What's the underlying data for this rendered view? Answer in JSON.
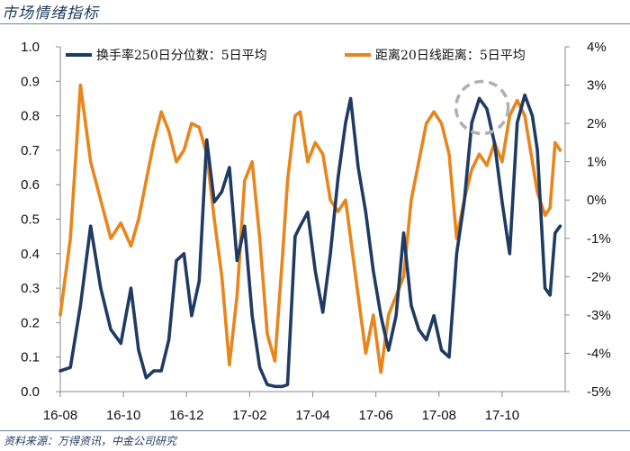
{
  "header": {
    "title": "市场情绪指标"
  },
  "footer": {
    "source": "资料来源：万得资讯，中金公司研究"
  },
  "chart_data": {
    "type": "line",
    "x_ticks": [
      "16-08",
      "16-10",
      "16-12",
      "17-02",
      "17-04",
      "17-06",
      "17-08",
      "17-10"
    ],
    "left_axis": {
      "ylim": [
        0,
        1.0
      ],
      "ticks": [
        "0.0",
        "0.1",
        "0.2",
        "0.3",
        "0.4",
        "0.5",
        "0.6",
        "0.7",
        "0.8",
        "0.9",
        "1.0"
      ]
    },
    "right_axis": {
      "ylim": [
        -5,
        4
      ],
      "ticks": [
        "-5%",
        "-4%",
        "-3%",
        "-2%",
        "-1%",
        "0%",
        "1%",
        "2%",
        "3%",
        "4%"
      ]
    },
    "grid": false,
    "legend_position": "top",
    "annotation": "dashed-circle-around-2017-08-peak",
    "series": [
      {
        "name": "换手率250日分位数：5日平均",
        "axis": "left",
        "color": "#1f3b63",
        "points": [
          [
            0.0,
            0.06
          ],
          [
            0.8,
            0.07
          ],
          [
            1.6,
            0.25
          ],
          [
            2.4,
            0.48
          ],
          [
            3.2,
            0.3
          ],
          [
            4.0,
            0.18
          ],
          [
            4.8,
            0.14
          ],
          [
            5.6,
            0.3
          ],
          [
            6.2,
            0.12
          ],
          [
            6.8,
            0.04
          ],
          [
            7.4,
            0.06
          ],
          [
            8.0,
            0.06
          ],
          [
            8.6,
            0.15
          ],
          [
            9.2,
            0.38
          ],
          [
            9.8,
            0.4
          ],
          [
            10.4,
            0.22
          ],
          [
            11.0,
            0.32
          ],
          [
            11.6,
            0.73
          ],
          [
            12.2,
            0.55
          ],
          [
            12.8,
            0.58
          ],
          [
            13.4,
            0.65
          ],
          [
            14.0,
            0.38
          ],
          [
            14.6,
            0.48
          ],
          [
            15.2,
            0.22
          ],
          [
            15.8,
            0.07
          ],
          [
            16.4,
            0.02
          ],
          [
            17.0,
            0.015
          ],
          [
            17.6,
            0.015
          ],
          [
            18.0,
            0.02
          ],
          [
            18.6,
            0.45
          ],
          [
            19.0,
            0.48
          ],
          [
            19.6,
            0.52
          ],
          [
            20.2,
            0.35
          ],
          [
            20.8,
            0.23
          ],
          [
            21.4,
            0.4
          ],
          [
            22.0,
            0.62
          ],
          [
            22.6,
            0.78
          ],
          [
            23.0,
            0.85
          ],
          [
            23.6,
            0.65
          ],
          [
            24.2,
            0.52
          ],
          [
            24.8,
            0.35
          ],
          [
            25.4,
            0.22
          ],
          [
            26.0,
            0.12
          ],
          [
            26.6,
            0.22
          ],
          [
            27.2,
            0.46
          ],
          [
            27.8,
            0.25
          ],
          [
            28.4,
            0.18
          ],
          [
            29.0,
            0.15
          ],
          [
            29.6,
            0.22
          ],
          [
            30.2,
            0.12
          ],
          [
            30.8,
            0.1
          ],
          [
            31.4,
            0.4
          ],
          [
            32.0,
            0.55
          ],
          [
            32.6,
            0.78
          ],
          [
            33.2,
            0.85
          ],
          [
            33.8,
            0.82
          ],
          [
            34.4,
            0.72
          ],
          [
            35.0,
            0.55
          ],
          [
            35.6,
            0.4
          ],
          [
            36.2,
            0.78
          ],
          [
            36.8,
            0.86
          ],
          [
            37.4,
            0.8
          ],
          [
            37.8,
            0.7
          ],
          [
            38.4,
            0.3
          ],
          [
            38.8,
            0.28
          ],
          [
            39.2,
            0.46
          ],
          [
            39.6,
            0.48
          ]
        ]
      },
      {
        "name": "距离20日线距离：5日平均",
        "axis": "right",
        "color": "#e8861d",
        "points": [
          [
            0.0,
            -3.0
          ],
          [
            0.8,
            -1.0
          ],
          [
            1.6,
            3.0
          ],
          [
            2.4,
            1.0
          ],
          [
            3.2,
            0.0
          ],
          [
            4.0,
            -1.0
          ],
          [
            4.8,
            -0.6
          ],
          [
            5.6,
            -1.2
          ],
          [
            6.2,
            -0.5
          ],
          [
            6.8,
            0.5
          ],
          [
            7.4,
            1.5
          ],
          [
            8.0,
            2.3
          ],
          [
            8.6,
            1.8
          ],
          [
            9.2,
            1.0
          ],
          [
            9.8,
            1.3
          ],
          [
            10.4,
            2.0
          ],
          [
            11.0,
            1.9
          ],
          [
            11.6,
            1.2
          ],
          [
            12.2,
            -0.5
          ],
          [
            12.8,
            -2.0
          ],
          [
            13.4,
            -4.3
          ],
          [
            14.0,
            -2.5
          ],
          [
            14.6,
            0.5
          ],
          [
            15.2,
            1.0
          ],
          [
            15.8,
            -1.0
          ],
          [
            16.4,
            -3.5
          ],
          [
            17.0,
            -4.2
          ],
          [
            17.6,
            -1.5
          ],
          [
            18.0,
            0.5
          ],
          [
            18.6,
            2.2
          ],
          [
            19.0,
            2.3
          ],
          [
            19.6,
            1.0
          ],
          [
            20.2,
            1.5
          ],
          [
            20.8,
            1.2
          ],
          [
            21.4,
            0.0
          ],
          [
            22.0,
            -0.3
          ],
          [
            22.6,
            0.0
          ],
          [
            23.0,
            -1.0
          ],
          [
            23.6,
            -2.5
          ],
          [
            24.2,
            -4.0
          ],
          [
            24.8,
            -3.0
          ],
          [
            25.4,
            -4.5
          ],
          [
            26.0,
            -3.0
          ],
          [
            26.6,
            -2.5
          ],
          [
            27.2,
            -2.0
          ],
          [
            27.8,
            0.0
          ],
          [
            28.4,
            1.0
          ],
          [
            29.0,
            2.0
          ],
          [
            29.6,
            2.3
          ],
          [
            30.2,
            2.0
          ],
          [
            30.8,
            1.2
          ],
          [
            31.4,
            -1.0
          ],
          [
            32.0,
            0.0
          ],
          [
            32.6,
            0.8
          ],
          [
            33.2,
            1.2
          ],
          [
            33.8,
            0.9
          ],
          [
            34.4,
            1.5
          ],
          [
            35.0,
            1.0
          ],
          [
            35.6,
            2.2
          ],
          [
            36.2,
            2.6
          ],
          [
            36.8,
            2.2
          ],
          [
            37.4,
            1.0
          ],
          [
            37.8,
            0.2
          ],
          [
            38.4,
            -0.4
          ],
          [
            38.8,
            -0.2
          ],
          [
            39.2,
            1.5
          ],
          [
            39.6,
            1.3
          ]
        ]
      }
    ]
  }
}
